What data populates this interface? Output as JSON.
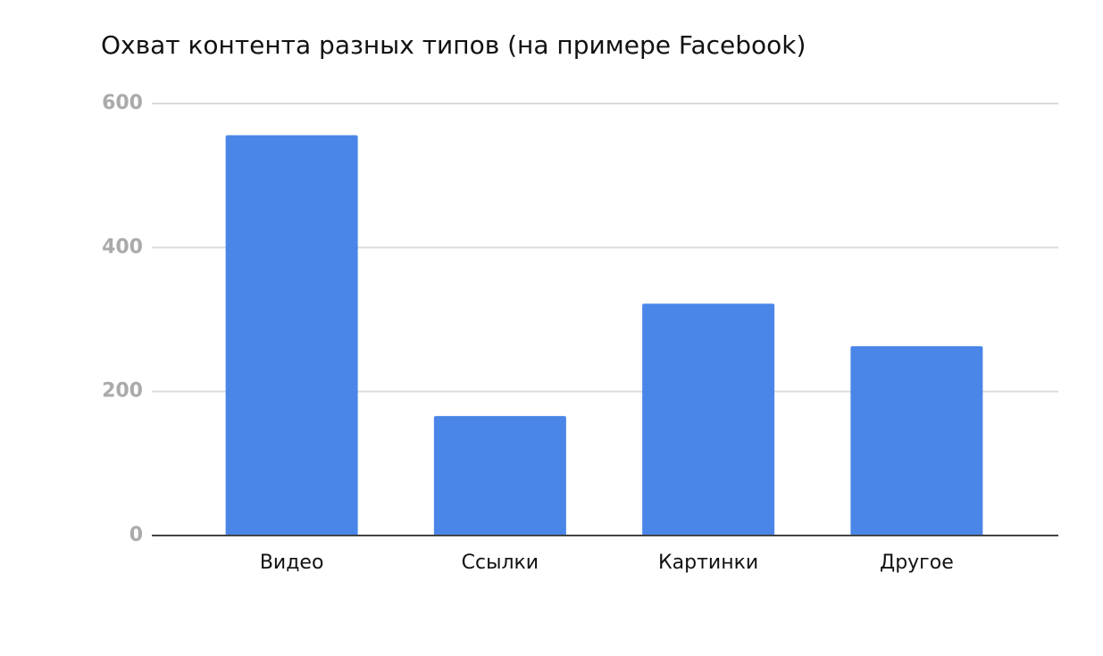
{
  "chart_data": {
    "type": "bar",
    "title": "Охват контента разных типов (на примере Facebook)",
    "categories": [
      "Видео",
      "Ссылки",
      "Картинки",
      "Другое"
    ],
    "values": [
      556,
      166,
      322,
      263
    ],
    "color": "#4a86e8",
    "ylim": [
      0,
      600
    ],
    "yticks": [
      0,
      200,
      400,
      600
    ],
    "grid": true
  }
}
